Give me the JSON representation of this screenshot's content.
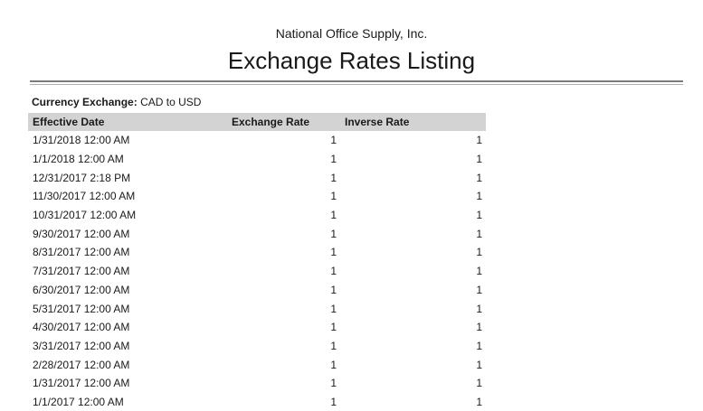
{
  "colors": {
    "header_band": "#d3d3d3",
    "rule_dark": "#7b7b7b",
    "rule_light": "#adadad",
    "text": "#1a1a1a"
  },
  "report": {
    "company_name": "National Office Supply, Inc.",
    "title": "Exchange Rates Listing",
    "filter_label": "Currency Exchange:",
    "filter_value": "CAD to USD"
  },
  "table": {
    "columns": [
      {
        "label": "Effective Date"
      },
      {
        "label": "Exchange Rate"
      },
      {
        "label": "Inverse Rate"
      }
    ],
    "rows": [
      {
        "effective_date": "1/31/2018 12:00 AM",
        "exchange_rate": "1",
        "inverse_rate": "1"
      },
      {
        "effective_date": "1/1/2018 12:00 AM",
        "exchange_rate": "1",
        "inverse_rate": "1"
      },
      {
        "effective_date": "12/31/2017 2:18 PM",
        "exchange_rate": "1",
        "inverse_rate": "1"
      },
      {
        "effective_date": "11/30/2017 12:00 AM",
        "exchange_rate": "1",
        "inverse_rate": "1"
      },
      {
        "effective_date": "10/31/2017 12:00 AM",
        "exchange_rate": "1",
        "inverse_rate": "1"
      },
      {
        "effective_date": "9/30/2017 12:00 AM",
        "exchange_rate": "1",
        "inverse_rate": "1"
      },
      {
        "effective_date": "8/31/2017 12:00 AM",
        "exchange_rate": "1",
        "inverse_rate": "1"
      },
      {
        "effective_date": "7/31/2017 12:00 AM",
        "exchange_rate": "1",
        "inverse_rate": "1"
      },
      {
        "effective_date": "6/30/2017 12:00 AM",
        "exchange_rate": "1",
        "inverse_rate": "1"
      },
      {
        "effective_date": "5/31/2017 12:00 AM",
        "exchange_rate": "1",
        "inverse_rate": "1"
      },
      {
        "effective_date": "4/30/2017 12:00 AM",
        "exchange_rate": "1",
        "inverse_rate": "1"
      },
      {
        "effective_date": "3/31/2017 12:00 AM",
        "exchange_rate": "1",
        "inverse_rate": "1"
      },
      {
        "effective_date": "2/28/2017 12:00 AM",
        "exchange_rate": "1",
        "inverse_rate": "1"
      },
      {
        "effective_date": "1/31/2017 12:00 AM",
        "exchange_rate": "1",
        "inverse_rate": "1"
      },
      {
        "effective_date": "1/1/2017 12:00 AM",
        "exchange_rate": "1",
        "inverse_rate": "1"
      }
    ]
  }
}
